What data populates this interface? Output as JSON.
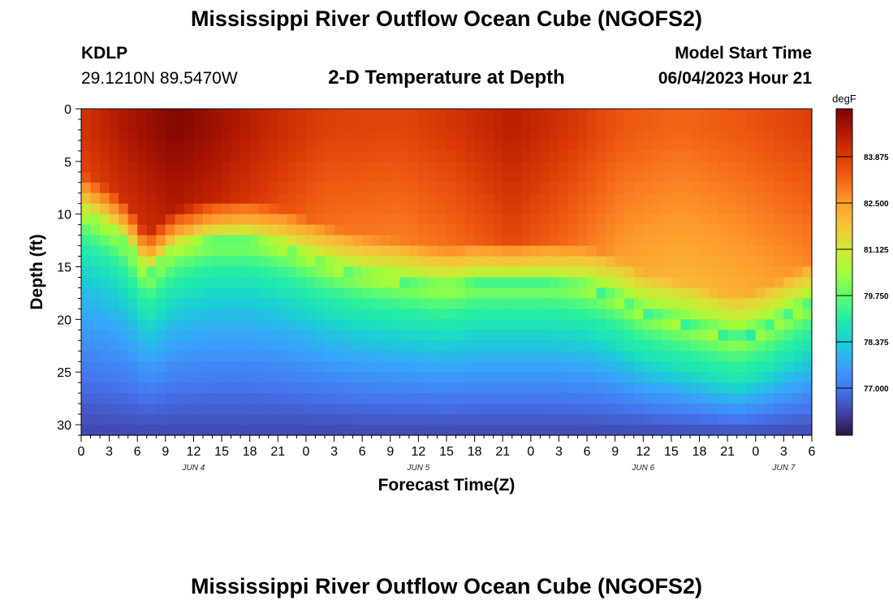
{
  "page": {
    "title": "Mississippi River Outflow Ocean Cube (NGOFS2)",
    "title_repeat": "Mississippi River Outflow Ocean Cube (NGOFS2)",
    "station": {
      "id": "KDLP",
      "coords": "29.1210N  89.5470W"
    },
    "subtitle": "2-D Temperature at Depth",
    "model_start": {
      "label": "Model Start Time",
      "value": "06/04/2023 Hour 21"
    }
  },
  "chart_data": {
    "type": "heatmap",
    "title": "2-D Temperature at Depth",
    "xlabel": "Forecast Time(Z)",
    "ylabel": "Depth (ft)",
    "x_range_hours": [
      0,
      78
    ],
    "y_range_ft": [
      0,
      31
    ],
    "x_ticks": [
      {
        "h": 0,
        "label": "0"
      },
      {
        "h": 3,
        "label": "3"
      },
      {
        "h": 6,
        "label": "6"
      },
      {
        "h": 9,
        "label": "9"
      },
      {
        "h": 12,
        "label": "12"
      },
      {
        "h": 15,
        "label": "15"
      },
      {
        "h": 18,
        "label": "18"
      },
      {
        "h": 21,
        "label": "21"
      },
      {
        "h": 24,
        "label": "0"
      },
      {
        "h": 27,
        "label": "3"
      },
      {
        "h": 30,
        "label": "6"
      },
      {
        "h": 33,
        "label": "9"
      },
      {
        "h": 36,
        "label": "12"
      },
      {
        "h": 39,
        "label": "15"
      },
      {
        "h": 42,
        "label": "18"
      },
      {
        "h": 45,
        "label": "21"
      },
      {
        "h": 48,
        "label": "0"
      },
      {
        "h": 51,
        "label": "3"
      },
      {
        "h": 54,
        "label": "6"
      },
      {
        "h": 57,
        "label": "9"
      },
      {
        "h": 60,
        "label": "12"
      },
      {
        "h": 63,
        "label": "15"
      },
      {
        "h": 66,
        "label": "18"
      },
      {
        "h": 69,
        "label": "21"
      },
      {
        "h": 72,
        "label": "0"
      },
      {
        "h": 75,
        "label": "3"
      },
      {
        "h": 78,
        "label": "6"
      }
    ],
    "date_labels": [
      {
        "h": 12,
        "label": "JUN 4"
      },
      {
        "h": 36,
        "label": "JUN 5"
      },
      {
        "h": 60,
        "label": "JUN 6"
      },
      {
        "h": 75,
        "label": "JUN 7"
      }
    ],
    "y_ticks": [
      0,
      5,
      10,
      15,
      20,
      25,
      30
    ],
    "colorbar": {
      "unit": "degF",
      "range": [
        75.6,
        85.3
      ],
      "ticks": [
        {
          "v": 77.0,
          "label": "77.000"
        },
        {
          "v": 78.375,
          "label": "78.375"
        },
        {
          "v": 79.75,
          "label": "79.750"
        },
        {
          "v": 81.125,
          "label": "81.125"
        },
        {
          "v": 82.5,
          "label": "82.500"
        },
        {
          "v": 83.875,
          "label": "83.875"
        }
      ],
      "colors": [
        "#30123b",
        "#4145ab",
        "#4675ed",
        "#39a2fc",
        "#1bcfd4",
        "#24eca6",
        "#61fc6c",
        "#a4fc3b",
        "#d1e834",
        "#f3c63a",
        "#fe9b2d",
        "#f36315",
        "#d93806",
        "#b11901",
        "#7a0402"
      ]
    },
    "thermocline_depth_ft": [
      {
        "h": 0,
        "d": 10.0
      },
      {
        "h": 3,
        "d": 11.5
      },
      {
        "h": 5,
        "d": 13.0
      },
      {
        "h": 7,
        "d": 16.0
      },
      {
        "h": 10,
        "d": 13.5
      },
      {
        "h": 14,
        "d": 12.5
      },
      {
        "h": 18,
        "d": 12.5
      },
      {
        "h": 22,
        "d": 13.5
      },
      {
        "h": 26,
        "d": 15.0
      },
      {
        "h": 30,
        "d": 16.0
      },
      {
        "h": 34,
        "d": 16.5
      },
      {
        "h": 38,
        "d": 17.0
      },
      {
        "h": 40,
        "d": 17.0
      },
      {
        "h": 42,
        "d": 16.5
      },
      {
        "h": 46,
        "d": 16.5
      },
      {
        "h": 50,
        "d": 16.5
      },
      {
        "h": 54,
        "d": 17.0
      },
      {
        "h": 57,
        "d": 18.0
      },
      {
        "h": 60,
        "d": 19.5
      },
      {
        "h": 64,
        "d": 20.5
      },
      {
        "h": 68,
        "d": 21.5
      },
      {
        "h": 70,
        "d": 22.0
      },
      {
        "h": 73,
        "d": 21.0
      },
      {
        "h": 76,
        "d": 19.5
      },
      {
        "h": 78,
        "d": 18.5
      }
    ],
    "surface_max_degF": [
      {
        "h": 0,
        "t": 84.0
      },
      {
        "h": 5,
        "t": 84.7
      },
      {
        "h": 10,
        "t": 85.2
      },
      {
        "h": 14,
        "t": 84.9
      },
      {
        "h": 20,
        "t": 84.3
      },
      {
        "h": 26,
        "t": 83.8
      },
      {
        "h": 34,
        "t": 83.7
      },
      {
        "h": 40,
        "t": 84.0
      },
      {
        "h": 46,
        "t": 84.5
      },
      {
        "h": 52,
        "t": 84.0
      },
      {
        "h": 58,
        "t": 83.4
      },
      {
        "h": 64,
        "t": 83.2
      },
      {
        "h": 70,
        "t": 83.4
      },
      {
        "h": 78,
        "t": 83.8
      }
    ],
    "bottom_temp_degF": 76.3
  }
}
